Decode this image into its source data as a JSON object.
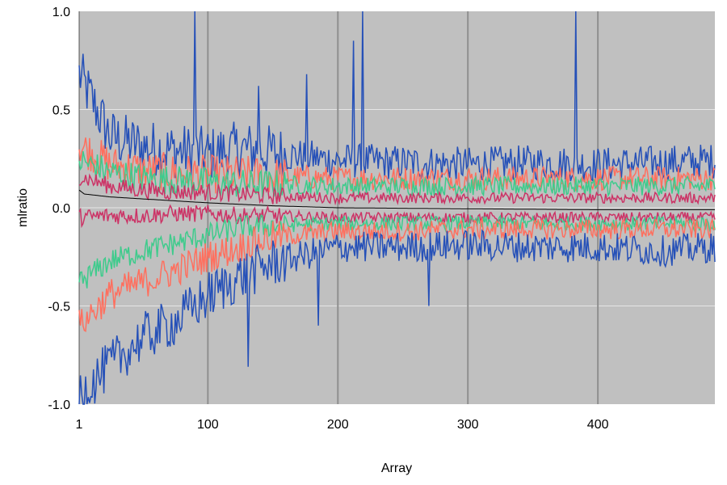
{
  "chart_data": {
    "type": "line",
    "xlabel": "Array",
    "ylabel": "mlratio",
    "xlim": [
      1,
      490
    ],
    "ylim": [
      -1.0,
      1.0
    ],
    "x_ticks": [
      1,
      100,
      200,
      300,
      400
    ],
    "y_ticks": [
      -1.0,
      -0.5,
      0.0,
      0.5,
      1.0
    ],
    "y_tick_labels": [
      "-1.0",
      "-0.5",
      "0.0",
      "0.5",
      "1.0"
    ],
    "plot_background": "#c0c0c0",
    "grid": true,
    "legend": "none",
    "series": [
      {
        "color": "#2550b8",
        "band": "upper",
        "x": [
          1,
          25,
          50,
          75,
          100,
          125,
          150,
          200,
          250,
          300,
          350,
          400,
          450,
          490
        ],
        "values": [
          0.68,
          0.36,
          0.31,
          0.29,
          0.27,
          0.3,
          0.28,
          0.24,
          0.23,
          0.22,
          0.23,
          0.22,
          0.23,
          0.24
        ]
      },
      {
        "color": "#ff6f5e",
        "band": "upper",
        "x": [
          1,
          25,
          50,
          75,
          100,
          125,
          150,
          200,
          250,
          300,
          350,
          400,
          450,
          490
        ],
        "values": [
          0.32,
          0.22,
          0.19,
          0.18,
          0.17,
          0.17,
          0.16,
          0.15,
          0.15,
          0.15,
          0.15,
          0.15,
          0.15,
          0.15
        ]
      },
      {
        "color": "#3ecb8c",
        "band": "upper",
        "x": [
          1,
          25,
          50,
          75,
          100,
          125,
          150,
          200,
          250,
          300,
          350,
          400,
          450,
          490
        ],
        "values": [
          0.24,
          0.18,
          0.15,
          0.14,
          0.13,
          0.12,
          0.12,
          0.11,
          0.11,
          0.11,
          0.11,
          0.11,
          0.11,
          0.11
        ]
      },
      {
        "color": "#cc3366",
        "band": "upper",
        "x": [
          1,
          25,
          50,
          75,
          100,
          125,
          150,
          200,
          250,
          300,
          350,
          400,
          450,
          490
        ],
        "values": [
          0.16,
          0.11,
          0.09,
          0.08,
          0.08,
          0.07,
          0.06,
          0.05,
          0.05,
          0.05,
          0.05,
          0.05,
          0.05,
          0.05
        ]
      },
      {
        "color": "#000000",
        "band": "median",
        "x": [
          1,
          5,
          25,
          50,
          75,
          100,
          150,
          200,
          300,
          400,
          490
        ],
        "values": [
          0.09,
          0.07,
          0.055,
          0.045,
          0.035,
          0.025,
          0.01,
          0.0,
          -0.005,
          -0.01,
          -0.01
        ]
      },
      {
        "color": "#cc3366",
        "band": "lower",
        "x": [
          1,
          25,
          50,
          75,
          100,
          125,
          150,
          200,
          250,
          300,
          350,
          400,
          450,
          490
        ],
        "values": [
          -0.05,
          -0.04,
          -0.04,
          -0.03,
          -0.03,
          -0.04,
          -0.04,
          -0.05,
          -0.05,
          -0.05,
          -0.05,
          -0.05,
          -0.05,
          -0.05
        ]
      },
      {
        "color": "#3ecb8c",
        "band": "lower",
        "x": [
          1,
          25,
          50,
          75,
          100,
          125,
          150,
          200,
          250,
          300,
          350,
          400,
          450,
          490
        ],
        "values": [
          -0.38,
          -0.27,
          -0.22,
          -0.18,
          -0.14,
          -0.1,
          -0.09,
          -0.08,
          -0.08,
          -0.08,
          -0.08,
          -0.08,
          -0.08,
          -0.08
        ]
      },
      {
        "color": "#ff6f5e",
        "band": "lower",
        "x": [
          1,
          25,
          50,
          75,
          100,
          125,
          150,
          200,
          250,
          300,
          350,
          400,
          450,
          490
        ],
        "values": [
          -0.6,
          -0.44,
          -0.38,
          -0.32,
          -0.25,
          -0.2,
          -0.15,
          -0.12,
          -0.12,
          -0.11,
          -0.11,
          -0.11,
          -0.11,
          -0.11
        ]
      },
      {
        "color": "#2550b8",
        "band": "lower",
        "x": [
          1,
          25,
          50,
          75,
          100,
          125,
          150,
          200,
          250,
          300,
          350,
          400,
          450,
          490
        ],
        "values": [
          -0.95,
          -0.8,
          -0.66,
          -0.58,
          -0.45,
          -0.35,
          -0.28,
          -0.2,
          -0.2,
          -0.19,
          -0.2,
          -0.2,
          -0.22,
          -0.2
        ]
      }
    ],
    "spikes": [
      {
        "x": 90,
        "y": 1.0
      },
      {
        "x": 212,
        "y": 0.85
      },
      {
        "x": 219,
        "y": 1.0
      },
      {
        "x": 383,
        "y": 1.0
      },
      {
        "x": 139,
        "y": 0.62
      },
      {
        "x": 176,
        "y": 0.68
      },
      {
        "x": 131,
        "y": -0.81
      },
      {
        "x": 270,
        "y": -0.5
      },
      {
        "x": 185,
        "y": -0.6
      }
    ]
  }
}
